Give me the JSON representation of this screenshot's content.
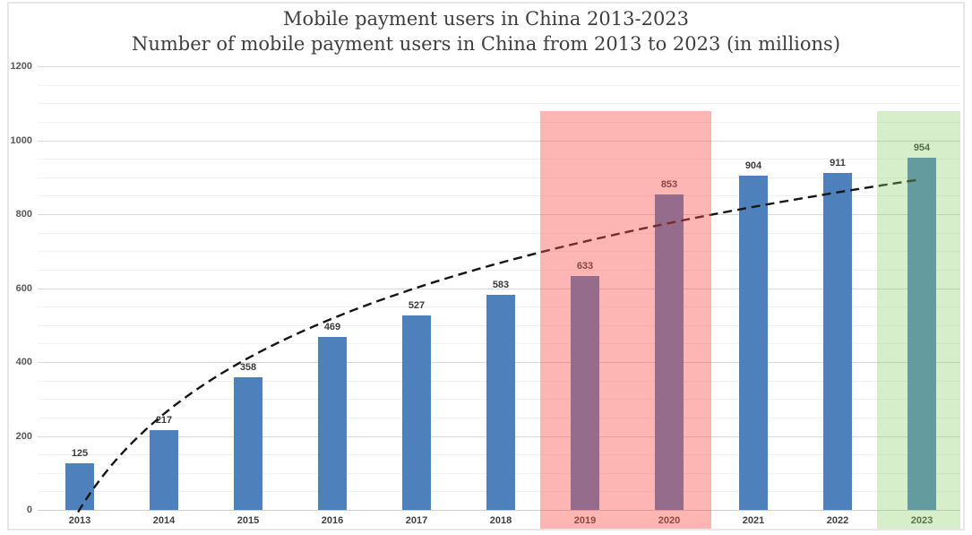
{
  "chart_data": {
    "type": "bar",
    "title": "Mobile payment users in China 2013-2023",
    "subtitle": "Number of mobile payment users in China from 2013 to 2023 (in millions)",
    "categories": [
      "2013",
      "2014",
      "2015",
      "2016",
      "2017",
      "2018",
      "2019",
      "2020",
      "2021",
      "2022",
      "2023"
    ],
    "values": [
      125,
      217,
      358,
      469,
      527,
      583,
      633,
      853,
      904,
      911,
      954
    ],
    "xlabel": "",
    "ylabel": "",
    "ylim": [
      0,
      1200
    ],
    "y_major_step": 200,
    "y_minor_step": 50,
    "y_axis_ticks": [
      "0",
      "200",
      "400",
      "600",
      "800",
      "1000",
      "1200"
    ],
    "grid": true,
    "legend": "none",
    "bar_color": "#4E80BC",
    "data_label_color": "#3b3b3b",
    "trendline": {
      "type": "logarithmic",
      "style": "dashed",
      "color": "#161616",
      "a": 1.5,
      "b": 372.4
    },
    "highlights": [
      {
        "name": "highlight-2019-2020",
        "from": "2019",
        "to": "2020",
        "color": "rgba(251,82,73,0.42)"
      },
      {
        "name": "highlight-2023",
        "from": "2023",
        "to": "2023",
        "color": "rgba(141,205,104,0.35)"
      }
    ]
  }
}
